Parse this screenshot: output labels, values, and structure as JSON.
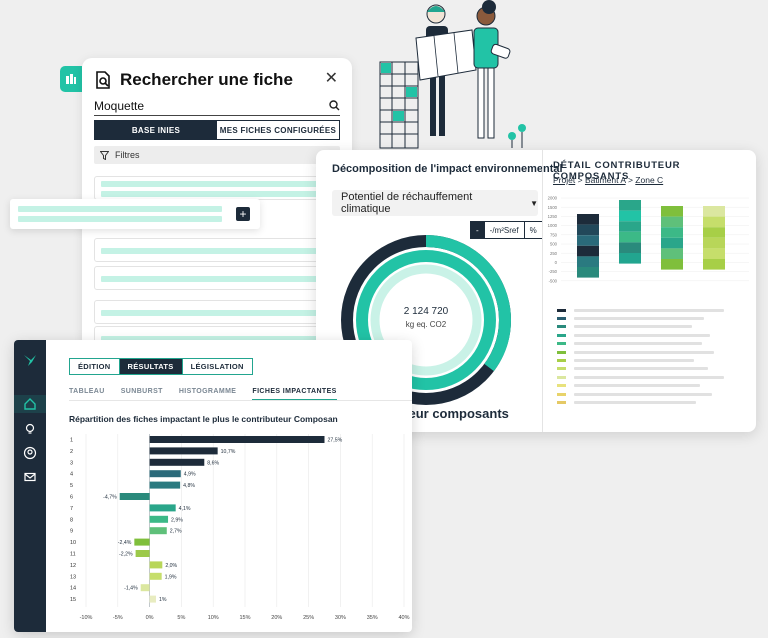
{
  "search_panel": {
    "title": "Rechercher une fiche",
    "query": "Moquette",
    "toggle_active": "BASE INIES",
    "toggle_inactive": "MES FICHES CONFIGURÉES",
    "filter_label": "Filtres",
    "icons": [
      "file-search-icon",
      "close-icon",
      "search-icon",
      "filter-icon",
      "plus-icon",
      "building-icon"
    ]
  },
  "impact_panel": {
    "title": "Décomposition de l'impact environnemental",
    "indicator": "Potentiel de réchauffement climatique",
    "unit_minus": "-",
    "unit_label": "-/m²Sref",
    "unit_percent": "%",
    "total_value": "2 124 720",
    "total_unit": "kg eq. CO2",
    "footer": "Contributeur composants"
  },
  "detail_panel": {
    "title": "DÉTAIL CONTRIBUTEUR COMPOSANTS",
    "breadcrumb": {
      "project": "Projet",
      "sep1": ">",
      "building": "Bâtiment A",
      "sep2": ">",
      "zone": "Zone C"
    },
    "y_ticks": [
      "2000",
      "1500",
      "1250",
      "1000",
      "750",
      "500",
      "250",
      "0",
      "-250",
      "-500"
    ],
    "legend_colors": [
      "#1d2b3a",
      "#2a5d70",
      "#2a8a7c",
      "#2aa68a",
      "#3cb987",
      "#7fbf3c",
      "#a7cf47",
      "#c6de6b",
      "#dbe7a0",
      "#e8e27d",
      "#e8d36a",
      "#e5c965"
    ]
  },
  "results_panel": {
    "tabs": [
      "ÉDITION",
      "RÉSULTATS",
      "LÉGISLATION"
    ],
    "active_tab": "RÉSULTATS",
    "subtabs": [
      "TABLEAU",
      "SUNBURST",
      "HISTOGRAMME",
      "FICHES IMPACTANTES"
    ],
    "active_subtab": "FICHES IMPACTANTES",
    "chart_title": "Répartition des fiches impactant le plus le contributeur Composan",
    "nav_icons": [
      "home-icon",
      "bulb-icon",
      "user-icon",
      "mail-icon"
    ]
  },
  "chart_data": {
    "type": "bar",
    "orientation": "horizontal",
    "title": "Répartition des fiches impactant le plus le contributeur Composan",
    "categories": [
      "1",
      "2",
      "3",
      "4",
      "5",
      "6",
      "7",
      "8",
      "9",
      "10",
      "11",
      "12",
      "13",
      "14",
      "15"
    ],
    "values": [
      27.5,
      10.7,
      8.6,
      4.9,
      4.8,
      -4.7,
      4.1,
      2.9,
      2.7,
      -2.4,
      -2.2,
      2.0,
      1.9,
      -1.4,
      1.0
    ],
    "labels": [
      "27,5%",
      "10,7%",
      "8,6%",
      "4,9%",
      "4,8%",
      "-4,7%",
      "4,1%",
      "2,9%",
      "2,7%",
      "-2,4%",
      "-2,2%",
      "2,0%",
      "1,9%",
      "-1,4%",
      "1%"
    ],
    "colors": [
      "#1d2b3a",
      "#1d2b3a",
      "#1d2b3a",
      "#2a6a7a",
      "#2a7a80",
      "#2a8a7c",
      "#2aa68a",
      "#3cb987",
      "#5fc07a",
      "#7fbf3c",
      "#9cc94a",
      "#b8d659",
      "#c6de6b",
      "#dbe7a0",
      "#e8ecc0"
    ],
    "xlim": [
      -10,
      40
    ],
    "x_ticks": [
      "-10%",
      "-5%",
      "0%",
      "5%",
      "10%",
      "15%",
      "20%",
      "25%",
      "30%",
      "35%",
      "40%"
    ],
    "grid": true
  }
}
